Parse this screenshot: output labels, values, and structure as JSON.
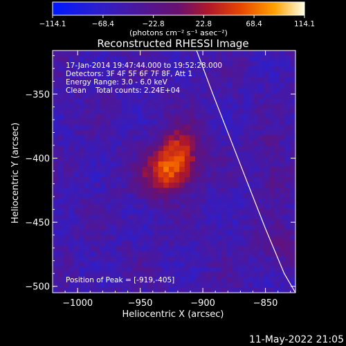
{
  "chart_data": {
    "type": "heatmap",
    "title": "Reconstructed RHESSI Image",
    "xlabel": "Heliocentric X (arcsec)",
    "ylabel": "Heliocentric Y (arcsec)",
    "xlim": [
      -1020,
      -826
    ],
    "ylim": [
      -505,
      -316
    ],
    "x_ticks": [
      -1000,
      -950,
      -900,
      -850
    ],
    "y_ticks": [
      -350,
      -400,
      -450,
      -500
    ],
    "x_tick_labels": [
      "−1000",
      "−950",
      "−900",
      "−850"
    ],
    "y_tick_labels": [
      "−350",
      "−400",
      "−450",
      "−500"
    ],
    "colorbar": {
      "min": -114.1,
      "max": 114.1,
      "ticks": [
        -114.1,
        -68.4,
        -22.8,
        22.8,
        68.4,
        114.1
      ],
      "tick_labels": [
        "−114.1",
        "−68.4",
        "−22.8",
        "22.8",
        "68.4",
        "114.1"
      ],
      "unit_label": "(photons cm⁻² s⁻¹ asec⁻²)"
    },
    "peak": {
      "x": -919,
      "y": -405
    },
    "annotations": {
      "time_range": "17-Jan-2014 19:47:44.000 to 19:52:28.000",
      "detectors": "Detectors: 3F 4F 5F 6F 7F 8F, Att 1",
      "energy": "Energy Range: 3.0 - 6.0 keV",
      "clean": "Clean    Total counts: 2.24E+04",
      "peak_text": "Position of Peak = [-919,-405]"
    },
    "limb_curve": [
      [
        -905,
        -316
      ],
      [
        -892,
        -350
      ],
      [
        -878,
        -385
      ],
      [
        -864,
        -420
      ],
      [
        -850,
        -455
      ],
      [
        -835,
        -490
      ],
      [
        -826,
        -505
      ]
    ],
    "sources": [
      {
        "x": -922,
        "y": -403,
        "sigma": 13,
        "amp": 114.1
      },
      {
        "x": -937,
        "y": -418,
        "sigma": 11,
        "amp": 45
      },
      {
        "x": -914,
        "y": -383,
        "sigma": 9,
        "amp": 35
      },
      {
        "x": -843,
        "y": -415,
        "sigma": 9,
        "amp": 32
      },
      {
        "x": -838,
        "y": -470,
        "sigma": 11,
        "amp": 28
      },
      {
        "x": -848,
        "y": -390,
        "sigma": 7,
        "amp": 22
      }
    ],
    "background_level": -48,
    "noise_amplitude": 14,
    "colors": {
      "limb": "#ffffff",
      "axes": "#ffffff",
      "background": "#000000"
    }
  },
  "footer": {
    "date": "11-May-2022 21:05"
  }
}
